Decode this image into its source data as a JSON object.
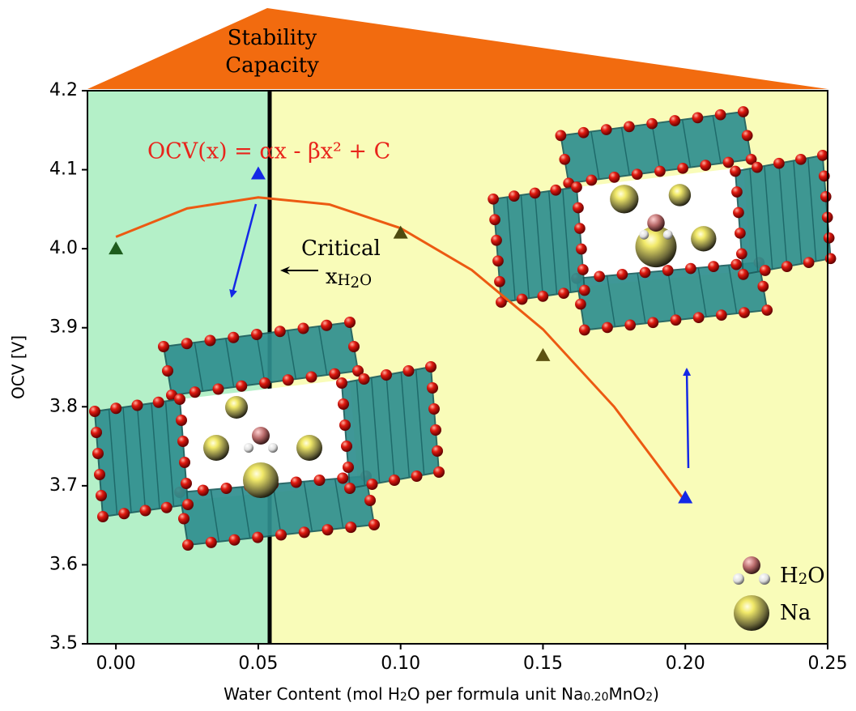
{
  "chart_data": {
    "type": "scatter",
    "title_lines": [
      "Stability",
      "Capacity"
    ],
    "title_color": "#f26b0f",
    "ylabel": "OCV [V]",
    "xlabel_parts": [
      "Water Content (mol H",
      "2",
      "O per formula unit Na",
      "0.20",
      "MnO",
      "2",
      ")"
    ],
    "xlim": [
      -0.01,
      0.25
    ],
    "ylim": [
      3.5,
      4.2
    ],
    "xticks": [
      {
        "value": 0,
        "label": "0.00"
      },
      0.05,
      {
        "value": 0.1,
        "label": "0.10"
      },
      0.15,
      {
        "value": 0.2,
        "label": "0.20"
      },
      0.25
    ],
    "yticks": [
      3.5,
      3.6,
      3.7,
      3.8,
      3.9,
      {
        "value": 4,
        "label": "4.0"
      },
      4.1,
      4.2
    ],
    "x": [
      0,
      0.05,
      0.1,
      0.15,
      0.2
    ],
    "values": [
      4.0,
      4.095,
      4.02,
      3.865,
      3.685
    ],
    "colors": [
      "#1d5c1d",
      "#1428e6",
      "#4d4a10",
      "#5c5212",
      "#1428e6"
    ],
    "fit": {
      "x": [
        0,
        0.025,
        0.05,
        0.075,
        0.1,
        0.125,
        0.15,
        0.175,
        0.2
      ],
      "values": [
        4.015,
        4.051,
        4.065,
        4.056,
        4.026,
        3.973,
        3.898,
        3.8,
        3.68
      ],
      "color": "#ec5a12",
      "label": "OCV(x) = αx - βx² + C",
      "label_color": "#e8251c"
    },
    "critical": {
      "x": 0.054,
      "label": "Critical",
      "symbol": "x",
      "symbol_sub_parts": [
        "H",
        "2",
        "O"
      ]
    },
    "regions": {
      "left_color": "#b4f0c8",
      "right_color": "#f9fcb9"
    },
    "legend": [
      {
        "parts": [
          "H",
          "2",
          "O"
        ]
      },
      {
        "parts": [
          "Na"
        ]
      }
    ]
  }
}
